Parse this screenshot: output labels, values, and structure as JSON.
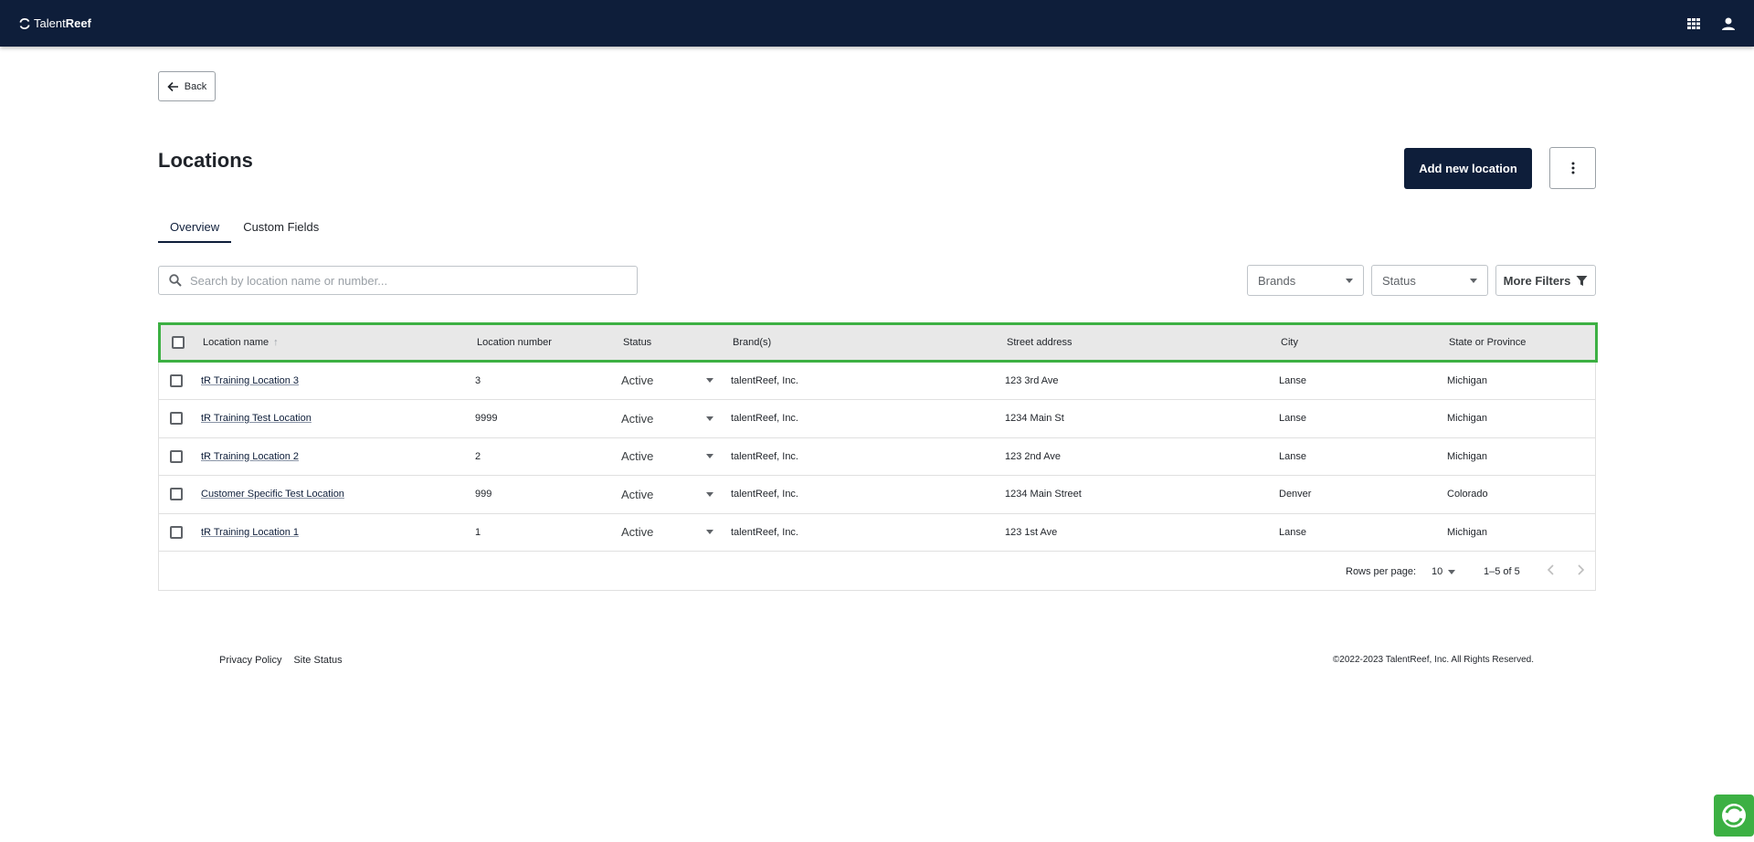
{
  "header": {
    "logo_text_light": "Talent",
    "logo_text_bold": "Reef",
    "apps_icon": "apps-grid-icon",
    "user_icon": "account-icon"
  },
  "back_label": "Back",
  "page_title": "Locations",
  "add_button_label": "Add new location",
  "tabs": [
    {
      "label": "Overview",
      "active": true
    },
    {
      "label": "Custom Fields",
      "active": false
    }
  ],
  "search": {
    "placeholder": "Search by location name or number...",
    "value": ""
  },
  "filters": {
    "brands_label": "Brands",
    "status_label": "Status",
    "more_label": "More Filters"
  },
  "table": {
    "columns": [
      "Location name",
      "Location number",
      "Status",
      "Brand(s)",
      "Street address",
      "City",
      "State or Province"
    ],
    "rows": [
      {
        "name": "tR Training Location 3",
        "number": "3",
        "status": "Active",
        "brand": "talentReef, Inc.",
        "street": "123 3rd Ave",
        "city": "Lanse",
        "state": "Michigan"
      },
      {
        "name": "tR Training Test Location",
        "number": "9999",
        "status": "Active",
        "brand": "talentReef, Inc.",
        "street": "1234 Main St",
        "city": "Lanse",
        "state": "Michigan"
      },
      {
        "name": "tR Training Location 2",
        "number": "2",
        "status": "Active",
        "brand": "talentReef, Inc.",
        "street": "123 2nd Ave",
        "city": "Lanse",
        "state": "Michigan"
      },
      {
        "name": "Customer Specific Test Location",
        "number": "999",
        "status": "Active",
        "brand": "talentReef, Inc.",
        "street": "1234 Main Street",
        "city": "Denver",
        "state": "Colorado"
      },
      {
        "name": "tR Training Location 1",
        "number": "1",
        "status": "Active",
        "brand": "talentReef, Inc.",
        "street": "123 1st Ave",
        "city": "Lanse",
        "state": "Michigan"
      }
    ]
  },
  "pagination": {
    "rows_per_page_label": "Rows per page:",
    "rows_per_page_value": "10",
    "range": "1–5 of 5"
  },
  "footer": {
    "privacy": "Privacy Policy",
    "site_status": "Site Status",
    "copyright": "©2022-2023 TalentReef, Inc. All Rights Reserved."
  },
  "colors": {
    "nav_bg": "#0e1e3a",
    "primary_button": "#0e1e3a",
    "highlight": "#3cb043",
    "header_row_bg": "#e8e8e8"
  }
}
